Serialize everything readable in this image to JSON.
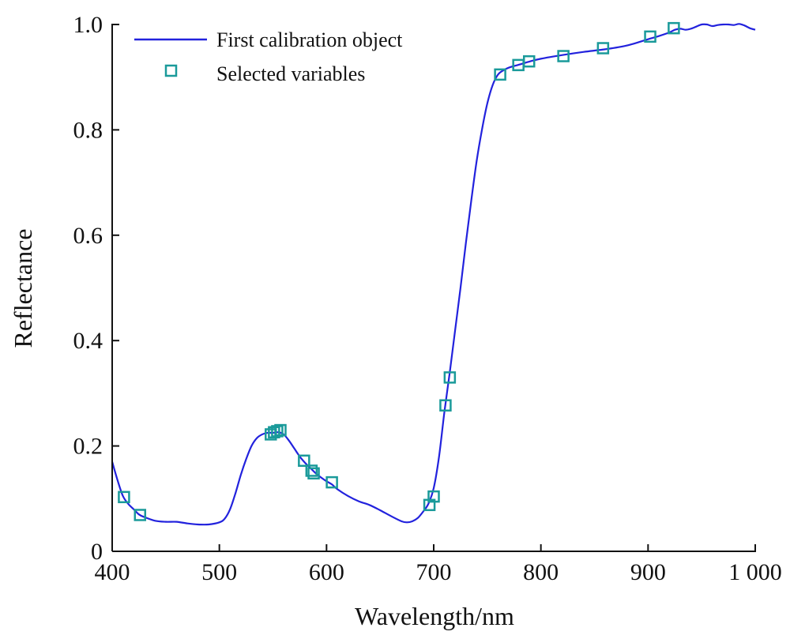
{
  "chart_data": {
    "type": "line",
    "title": "",
    "xlabel": "Wavelength/nm",
    "ylabel": "Reflectance",
    "xlim": [
      400,
      1000
    ],
    "ylim": [
      0,
      1.0
    ],
    "x_ticks": [
      400,
      500,
      600,
      700,
      800,
      900,
      1000
    ],
    "x_tick_labels": [
      "400",
      "500",
      "600",
      "700",
      "800",
      "900",
      "1 000"
    ],
    "y_ticks": [
      0,
      0.2,
      0.4,
      0.6,
      0.8,
      1.0
    ],
    "y_tick_labels": [
      "0",
      "0.2",
      "0.4",
      "0.6",
      "0.8",
      "1.0"
    ],
    "grid": false,
    "legend_position": "top-left",
    "colors": {
      "line": "#2222dd",
      "marker": "#1a9a9a"
    },
    "series": [
      {
        "name": "First calibration object",
        "style": "line",
        "x": [
          400,
          405,
          410,
          415,
          420,
          425,
          430,
          440,
          450,
          460,
          470,
          480,
          490,
          500,
          505,
          510,
          515,
          520,
          525,
          530,
          535,
          540,
          545,
          550,
          555,
          560,
          565,
          570,
          575,
          580,
          585,
          590,
          595,
          600,
          605,
          610,
          620,
          630,
          640,
          650,
          660,
          670,
          675,
          680,
          685,
          690,
          695,
          700,
          705,
          710,
          715,
          720,
          725,
          730,
          735,
          740,
          745,
          750,
          755,
          760,
          765,
          770,
          780,
          790,
          800,
          820,
          840,
          860,
          880,
          900,
          910,
          920,
          925,
          930,
          935,
          940,
          945,
          950,
          955,
          960,
          965,
          970,
          975,
          980,
          985,
          990,
          995,
          1000
        ],
        "y": [
          0.17,
          0.135,
          0.105,
          0.09,
          0.08,
          0.07,
          0.065,
          0.058,
          0.056,
          0.056,
          0.053,
          0.051,
          0.051,
          0.055,
          0.062,
          0.08,
          0.11,
          0.145,
          0.175,
          0.2,
          0.215,
          0.222,
          0.225,
          0.225,
          0.226,
          0.222,
          0.21,
          0.195,
          0.18,
          0.168,
          0.158,
          0.148,
          0.14,
          0.133,
          0.127,
          0.118,
          0.105,
          0.095,
          0.088,
          0.078,
          0.067,
          0.057,
          0.055,
          0.057,
          0.063,
          0.075,
          0.09,
          0.12,
          0.18,
          0.265,
          0.34,
          0.42,
          0.5,
          0.585,
          0.665,
          0.74,
          0.8,
          0.85,
          0.885,
          0.905,
          0.913,
          0.918,
          0.924,
          0.93,
          0.935,
          0.942,
          0.948,
          0.953,
          0.96,
          0.972,
          0.978,
          0.985,
          0.99,
          0.992,
          0.99,
          0.992,
          0.996,
          1.0,
          1.0,
          0.997,
          0.999,
          1.0,
          1.0,
          0.999,
          1.001,
          0.998,
          0.993,
          0.99
        ]
      },
      {
        "name": "Selected variables",
        "style": "marker",
        "x": [
          411,
          426,
          548,
          551,
          554,
          557,
          579,
          586,
          588,
          605,
          696,
          700,
          711,
          715,
          762,
          779,
          789,
          821,
          858,
          902,
          924
        ],
        "y": [
          0.103,
          0.069,
          0.222,
          0.226,
          0.228,
          0.23,
          0.172,
          0.153,
          0.148,
          0.131,
          0.088,
          0.104,
          0.277,
          0.33,
          0.905,
          0.923,
          0.93,
          0.94,
          0.955,
          0.977,
          0.993
        ]
      }
    ]
  }
}
